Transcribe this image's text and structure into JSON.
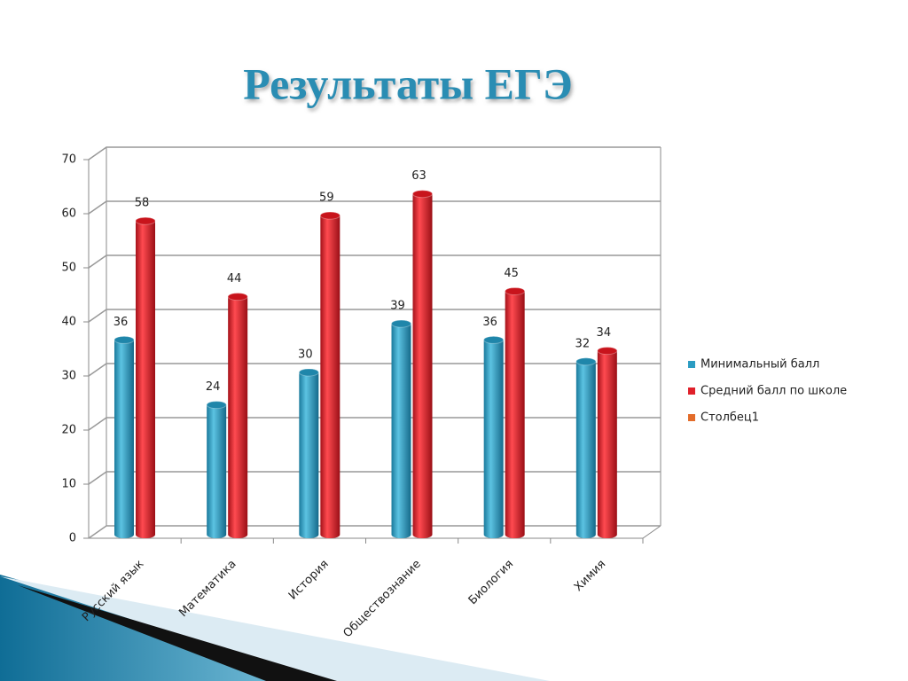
{
  "chart_data": {
    "type": "bar3d",
    "title": "Результаты ЕГЭ",
    "categories": [
      "Русский язык",
      "Математика",
      "История",
      "Обществознание",
      "Биология",
      "Химия"
    ],
    "series": [
      {
        "name": "Минимальный балл",
        "color": "#2b9cc2",
        "values": [
          36,
          24,
          30,
          39,
          36,
          32
        ]
      },
      {
        "name": "Средний балл по школе",
        "color": "#e0202a",
        "values": [
          58,
          44,
          59,
          63,
          45,
          34
        ]
      },
      {
        "name": "Столбец1",
        "color": "#e36c2a",
        "values": [
          null,
          null,
          null,
          null,
          null,
          null
        ]
      }
    ],
    "ylim": [
      0,
      70
    ],
    "yticks": [
      0,
      10,
      20,
      30,
      40,
      50,
      60,
      70
    ],
    "grid": true,
    "legend": "right"
  }
}
